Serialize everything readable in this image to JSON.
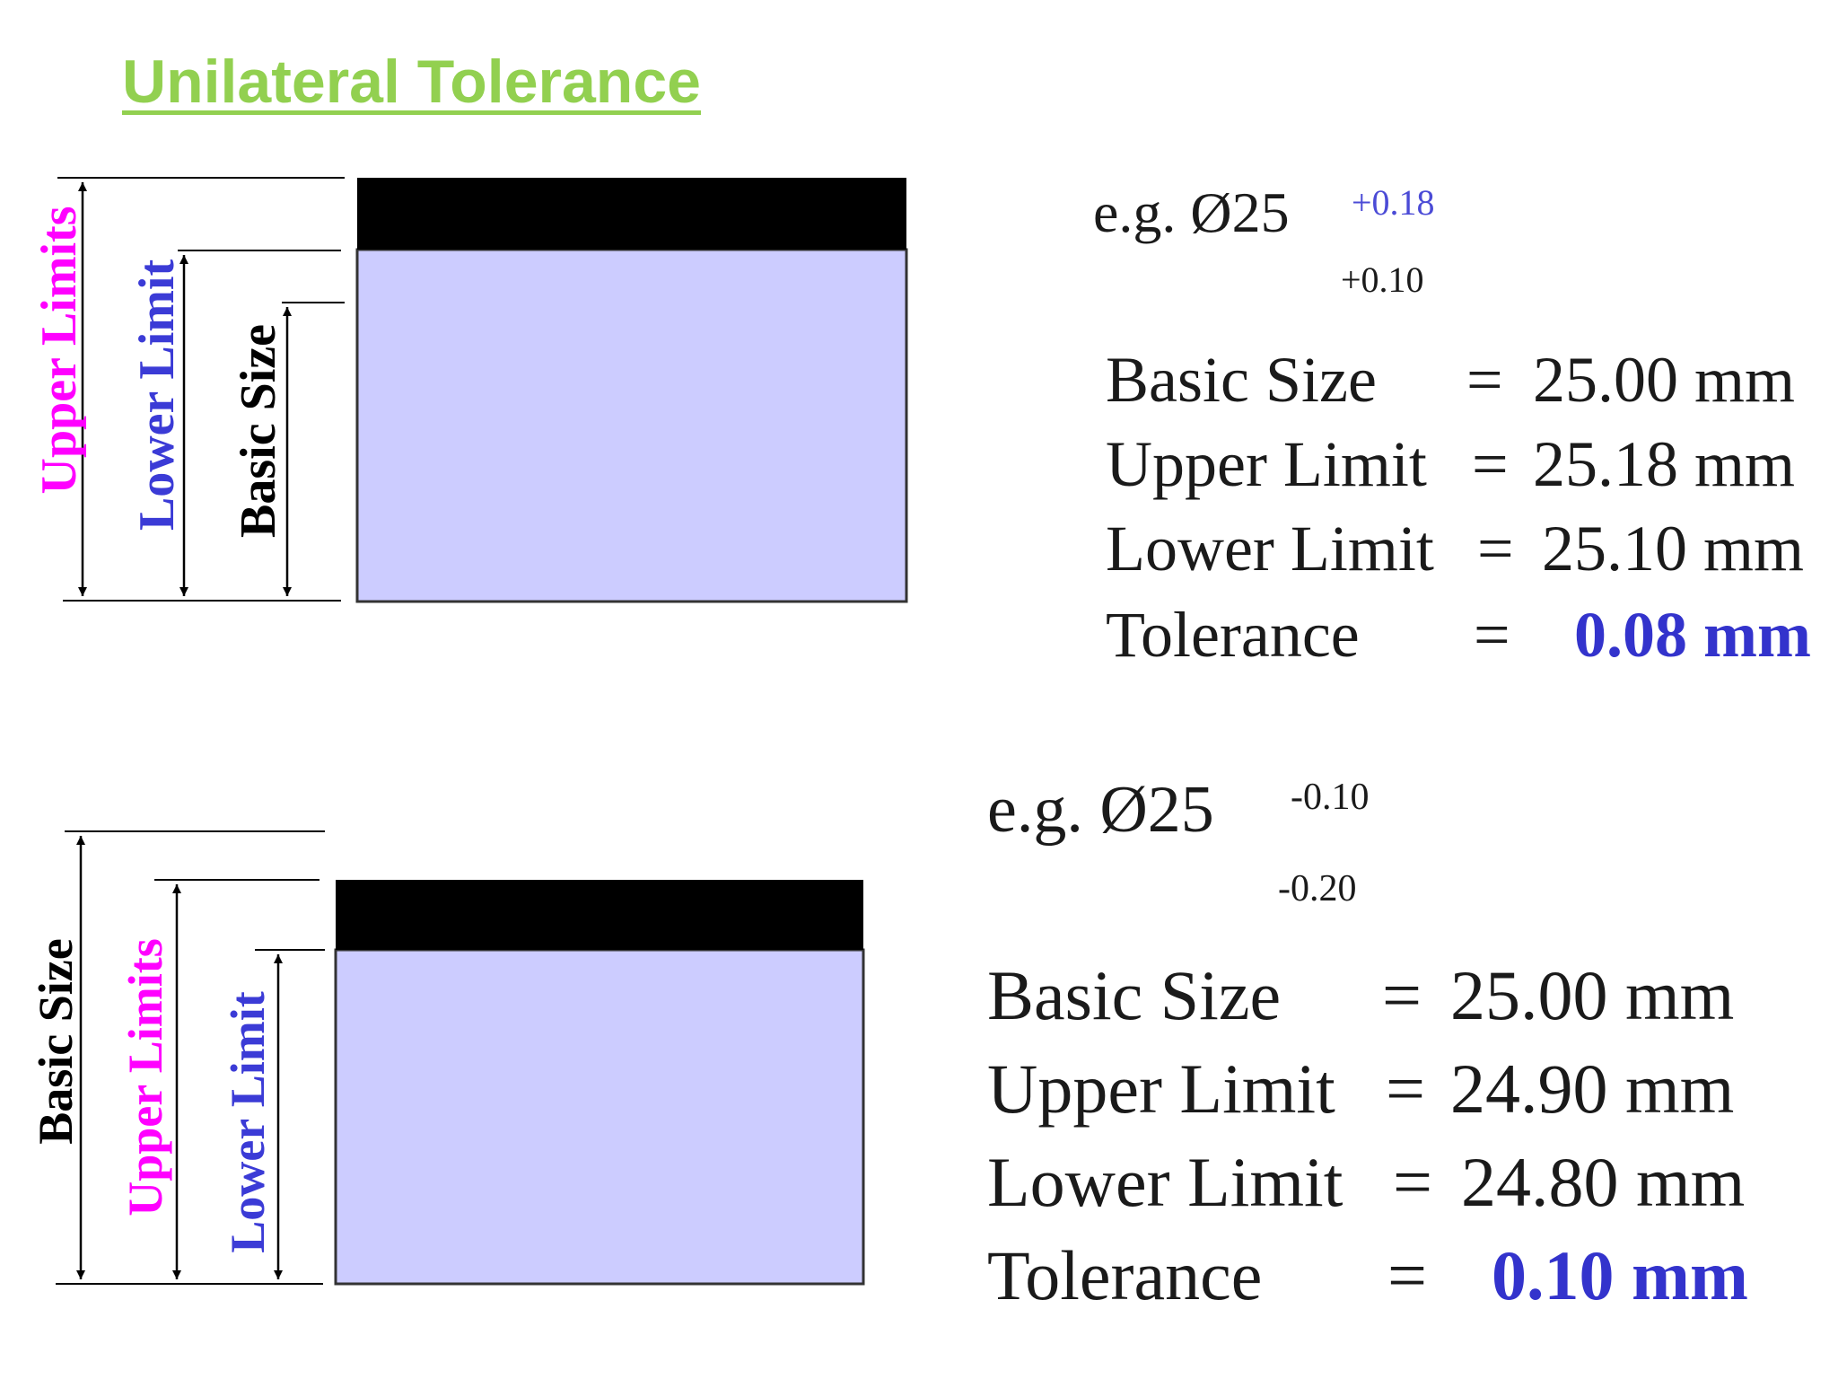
{
  "title": "Unilateral Tolerance",
  "colors": {
    "title": "#92d050",
    "shaft_fill": "#ccccff",
    "tolerance_band": "#000000",
    "upper_label": "#ff00ff",
    "lower_label": "#3b3bd6",
    "highlight_value": "#3333cc"
  },
  "examples": [
    {
      "diagram": {
        "upper_label": "Upper Limits",
        "lower_label": "Lower Limit",
        "basic_label": "Basic Size"
      },
      "eg_prefix": "e.g.  Ø25",
      "upper_deviation": "+0.18",
      "lower_deviation": "+0.10",
      "rows": [
        {
          "label": "Basic Size",
          "eq": "=",
          "value": "25.00 mm"
        },
        {
          "label": "Upper Limit",
          "eq": "=",
          "value": "25.18 mm"
        },
        {
          "label": "Lower Limit",
          "eq": "=",
          "value": "25.10 mm"
        },
        {
          "label": "Tolerance",
          "eq": "=",
          "value": "0.08 mm"
        }
      ]
    },
    {
      "diagram": {
        "basic_label": "Basic Size",
        "upper_label": "Upper Limits",
        "lower_label": "Lower Limit"
      },
      "eg_prefix": "e.g.  Ø25",
      "upper_deviation": "-0.10",
      "lower_deviation": "-0.20",
      "rows": [
        {
          "label": "Basic Size",
          "eq": "=",
          "value": "25.00 mm"
        },
        {
          "label": "Upper Limit",
          "eq": "=",
          "value": "24.90 mm"
        },
        {
          "label": "Lower Limit",
          "eq": "=",
          "value": "24.80 mm"
        },
        {
          "label": "Tolerance",
          "eq": "=",
          "value": "0.10 mm"
        }
      ]
    }
  ]
}
